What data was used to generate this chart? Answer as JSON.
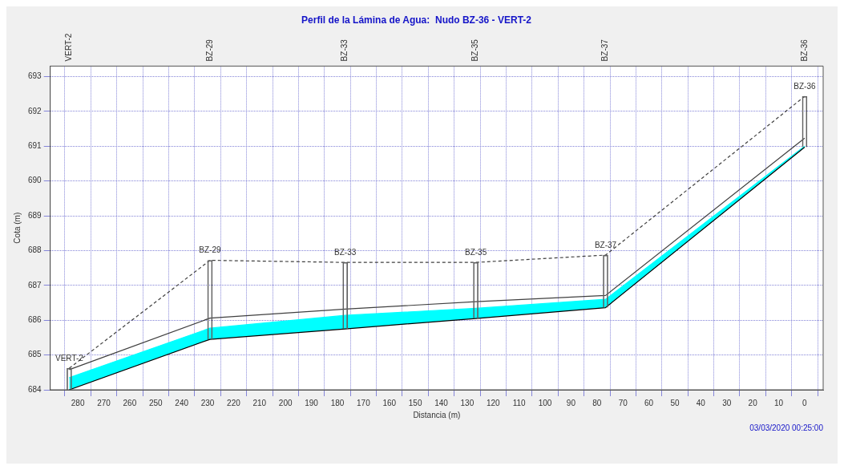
{
  "chart_data": {
    "type": "line",
    "title": "Perfil de la Lámina de Agua:  Nudo BZ-36 - VERT-2",
    "xlabel": "Distancia (m)",
    "ylabel": "Cota (m)",
    "x": [
      283.3,
      229.1,
      177,
      126.7,
      76.7,
      0
    ],
    "series": [
      {
        "color": "#000000",
        "values": [
          684.0,
          685.45,
          685.75,
          686.05,
          686.36,
          690.97
        ]
      },
      {
        "type": "area",
        "color": "#00ffff",
        "values": [
          684.35,
          685.77,
          686.14,
          686.34,
          686.6,
          691.0
        ]
      },
      {
        "color": "#404040",
        "values": [
          684.58,
          686.06,
          686.32,
          686.53,
          686.71,
          691.23
        ]
      },
      {
        "color": "#404040",
        "line_style": "dashed",
        "values": [
          684.62,
          687.72,
          687.66,
          687.66,
          687.87,
          692.43
        ]
      },
      {
        "type": "bar",
        "color": "#606060",
        "base": [
          684.0,
          685.45,
          685.75,
          686.05,
          686.36,
          690.97
        ],
        "values": [
          0.62,
          2.27,
          1.91,
          1.61,
          1.51,
          1.46
        ]
      }
    ],
    "xlim": [
      285.5,
      -2
    ],
    "xticks": [
      280,
      270,
      260,
      250,
      240,
      230,
      220,
      210,
      200,
      190,
      180,
      170,
      160,
      150,
      140,
      130,
      120,
      110,
      100,
      90,
      80,
      70,
      60,
      50,
      40,
      30,
      20,
      10,
      0
    ],
    "ylim": [
      684,
      693.3
    ],
    "yticks": [
      684,
      685,
      686,
      687,
      688,
      689,
      690,
      691,
      692,
      693
    ],
    "annotations": [
      {
        "text": "VERT-2",
        "x": 283.3,
        "y": 684.62
      },
      {
        "text": "BZ-29",
        "x": 229.1,
        "y": 687.72
      },
      {
        "text": "BZ-33",
        "x": 177,
        "y": 687.66
      },
      {
        "text": "BZ-35",
        "x": 126.7,
        "y": 687.66
      },
      {
        "text": "BZ-37",
        "x": 76.7,
        "y": 687.87
      },
      {
        "text": "BZ-36",
        "x": 0,
        "y": 692.43
      },
      "03/03/2020 00:25:00"
    ],
    "grid": true,
    "legend": false,
    "marker": "none"
  }
}
